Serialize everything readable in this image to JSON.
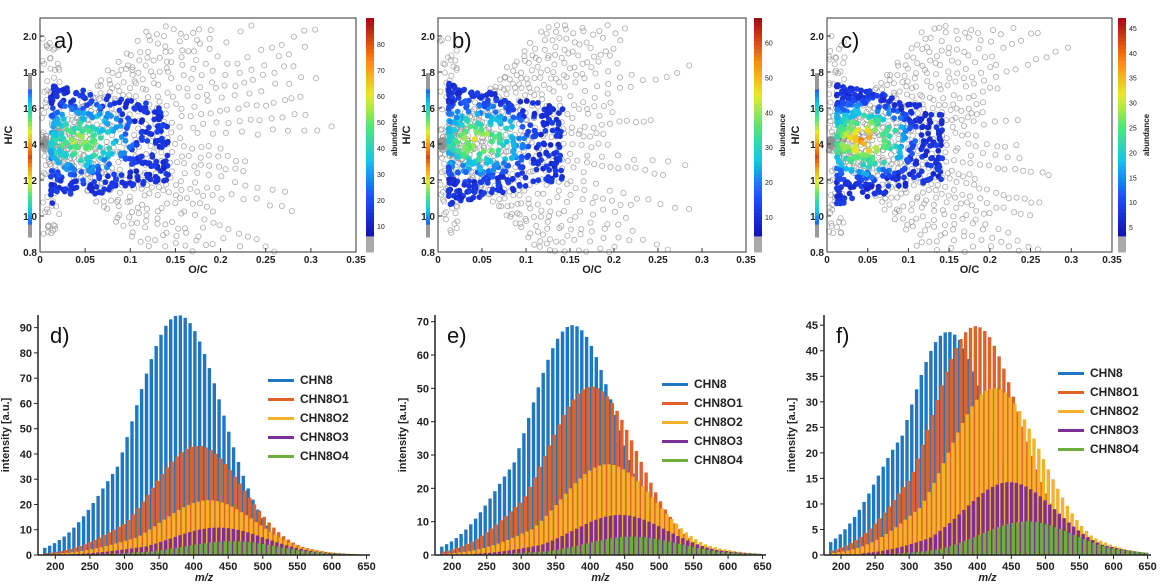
{
  "colors": {
    "CHN8": "#1f77c4",
    "CHN8O1": "#e0612a",
    "CHN8O2": "#f2b32a",
    "CHN8O3": "#7d2f96",
    "CHN8O4": "#71ad3d",
    "grey_marker": "#9a9a9a"
  },
  "chart_data": [
    {
      "panel": "a)",
      "type": "scatter",
      "xlabel": "O/C",
      "ylabel": "H/C",
      "colorbar_label": "abundance",
      "colorbar_ticks": [
        10,
        20,
        30,
        40,
        50,
        60,
        70,
        80
      ],
      "colorbar_range": [
        0,
        90
      ],
      "xlim": [
        0,
        0.35
      ],
      "ylim": [
        0.8,
        2.1
      ],
      "xticks": [
        "0",
        "0.05",
        "0.1",
        "0.15",
        "0.2",
        "0.25",
        "0.3",
        "0.35"
      ],
      "yticks": [
        "0.8",
        "1.0",
        "1.2",
        "1.4",
        "1.6",
        "1.8",
        "2.0"
      ],
      "description_of_data": "dense families of circles radiating from O/C≈0, H/C≈1.4; high-abundance points concentrated at O/C 0.02–0.08, H/C 1.25–1.6",
      "max_oc": 0.34,
      "hot_fraction": 0.55
    },
    {
      "panel": "b)",
      "type": "scatter",
      "xlabel": "O/C",
      "ylabel": "H/C",
      "colorbar_label": "abundance",
      "colorbar_ticks": [
        10,
        20,
        30,
        40,
        50,
        60
      ],
      "colorbar_range": [
        0,
        67
      ],
      "xlim": [
        0,
        0.35
      ],
      "ylim": [
        0.8,
        2.1
      ],
      "xticks": [
        "0",
        "0.05",
        "0.1",
        "0.15",
        "0.2",
        "0.25",
        "0.3",
        "0.35"
      ],
      "yticks": [
        "0.8",
        "1.0",
        "1.2",
        "1.4",
        "1.6",
        "1.8",
        "2.0"
      ],
      "max_oc": 0.3,
      "hot_fraction": 0.6
    },
    {
      "panel": "c)",
      "type": "scatter",
      "xlabel": "O/C",
      "ylabel": "H/C",
      "colorbar_label": "abundance",
      "colorbar_ticks": [
        5,
        10,
        15,
        20,
        25,
        30,
        35,
        40,
        45
      ],
      "colorbar_range": [
        0,
        47
      ],
      "xlim": [
        0,
        0.35
      ],
      "ylim": [
        0.8,
        2.1
      ],
      "xticks": [
        "0",
        "0.05",
        "0.1",
        "0.15",
        "0.2",
        "0.25",
        "0.3",
        "0.35"
      ],
      "yticks": [
        "0.8",
        "1.0",
        "1.2",
        "1.4",
        "1.6",
        "1.8",
        "2.0"
      ],
      "max_oc": 0.33,
      "hot_fraction": 0.75
    },
    {
      "panel": "d)",
      "type": "bar",
      "xlabel": "m/z",
      "ylabel": "intensity [a.u.]",
      "xlim": [
        175,
        655
      ],
      "ylim": [
        0,
        95
      ],
      "xticks": [
        200,
        250,
        300,
        350,
        400,
        450,
        500,
        550,
        600,
        650
      ],
      "yticks": [
        0,
        10,
        20,
        30,
        40,
        50,
        60,
        70,
        80,
        90
      ],
      "legend_position": "right",
      "series": [
        {
          "name": "CHN8",
          "peak_mz": 370,
          "peak": 90,
          "width": 58
        },
        {
          "name": "CHN8O1",
          "peak_mz": 400,
          "peak": 40,
          "width": 62
        },
        {
          "name": "CHN8O2",
          "peak_mz": 415,
          "peak": 20,
          "width": 65
        },
        {
          "name": "CHN8O3",
          "peak_mz": 430,
          "peak": 10,
          "width": 65
        },
        {
          "name": "CHN8O4",
          "peak_mz": 450,
          "peak": 5,
          "width": 65
        }
      ]
    },
    {
      "panel": "e)",
      "type": "bar",
      "xlabel": "m/z",
      "ylabel": "intensity [a.u.]",
      "xlim": [
        175,
        655
      ],
      "ylim": [
        0,
        72
      ],
      "xticks": [
        200,
        250,
        300,
        350,
        400,
        450,
        500,
        550,
        600,
        650
      ],
      "yticks": [
        0,
        10,
        20,
        30,
        40,
        50,
        60,
        70
      ],
      "legend_position": "right",
      "series": [
        {
          "name": "CHN8",
          "peak_mz": 365,
          "peak": 66,
          "width": 58
        },
        {
          "name": "CHN8O1",
          "peak_mz": 395,
          "peak": 47,
          "width": 62
        },
        {
          "name": "CHN8O2",
          "peak_mz": 420,
          "peak": 25,
          "width": 65
        },
        {
          "name": "CHN8O3",
          "peak_mz": 440,
          "peak": 11,
          "width": 65
        },
        {
          "name": "CHN8O4",
          "peak_mz": 460,
          "peak": 5,
          "width": 65
        }
      ]
    },
    {
      "panel": "f)",
      "type": "bar",
      "xlabel": "m/z",
      "ylabel": "intensity [a.u.]",
      "xlim": [
        175,
        655
      ],
      "ylim": [
        0,
        47
      ],
      "xticks": [
        200,
        250,
        300,
        350,
        400,
        450,
        500,
        550,
        600,
        650
      ],
      "yticks": [
        0,
        5,
        10,
        15,
        20,
        25,
        30,
        35,
        40,
        45
      ],
      "legend_position": "right",
      "series": [
        {
          "name": "CHN8",
          "peak_mz": 345,
          "peak": 44,
          "width": 55
        },
        {
          "name": "CHN8O1",
          "peak_mz": 390,
          "peak": 42,
          "width": 60
        },
        {
          "name": "CHN8O2",
          "peak_mz": 420,
          "peak": 30,
          "width": 65
        },
        {
          "name": "CHN8O3",
          "peak_mz": 445,
          "peak": 13,
          "width": 65
        },
        {
          "name": "CHN8O4",
          "peak_mz": 475,
          "peak": 6,
          "width": 65
        }
      ]
    }
  ]
}
